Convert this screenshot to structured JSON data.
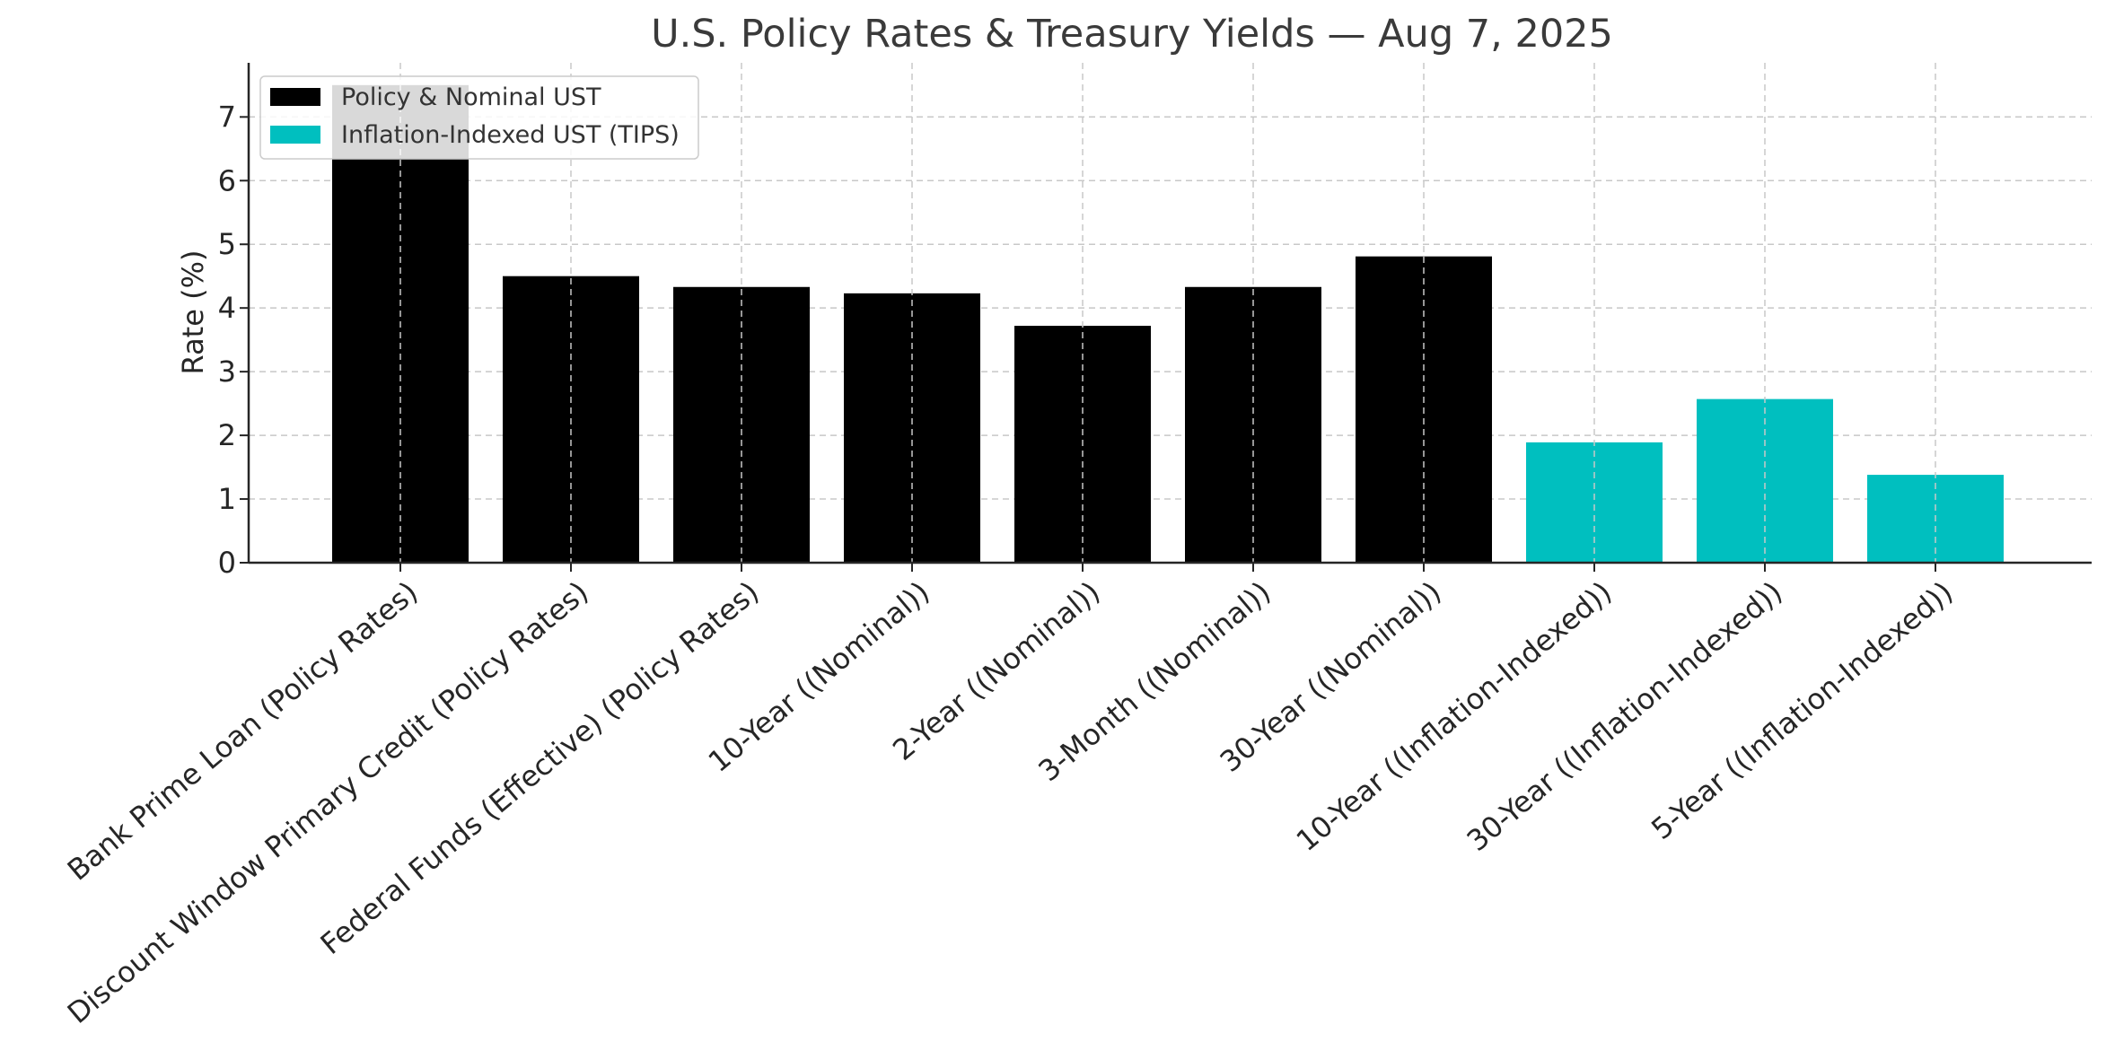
{
  "chart_data": {
    "type": "bar",
    "title": "U.S. Policy Rates & Treasury Yields — Aug 7, 2025",
    "xlabel": "",
    "ylabel": "Rate (%)",
    "ylim": [
      0,
      7.85
    ],
    "yticks": [
      0,
      1,
      2,
      3,
      4,
      5,
      6,
      7
    ],
    "grid": true,
    "legend_position": "top-left",
    "categories": [
      "Bank Prime Loan (Policy Rates)",
      "Discount Window Primary Credit (Policy Rates)",
      "Federal Funds (Effective) (Policy Rates)",
      "10-Year ((Nominal))",
      "2-Year ((Nominal))",
      "3-Month ((Nominal))",
      "30-Year ((Nominal))",
      "10-Year ((Inflation-Indexed))",
      "30-Year ((Inflation-Indexed))",
      "5-Year ((Inflation-Indexed))"
    ],
    "values": [
      7.5,
      4.5,
      4.33,
      4.23,
      3.72,
      4.33,
      4.81,
      1.89,
      2.57,
      1.38
    ],
    "series_index": [
      0,
      0,
      0,
      0,
      0,
      0,
      0,
      1,
      1,
      1
    ],
    "series": [
      {
        "name": "Policy & Nominal UST",
        "color": "#000000"
      },
      {
        "name": "Inflation-Indexed UST (TIPS)",
        "color": "#00bfbf"
      }
    ]
  }
}
